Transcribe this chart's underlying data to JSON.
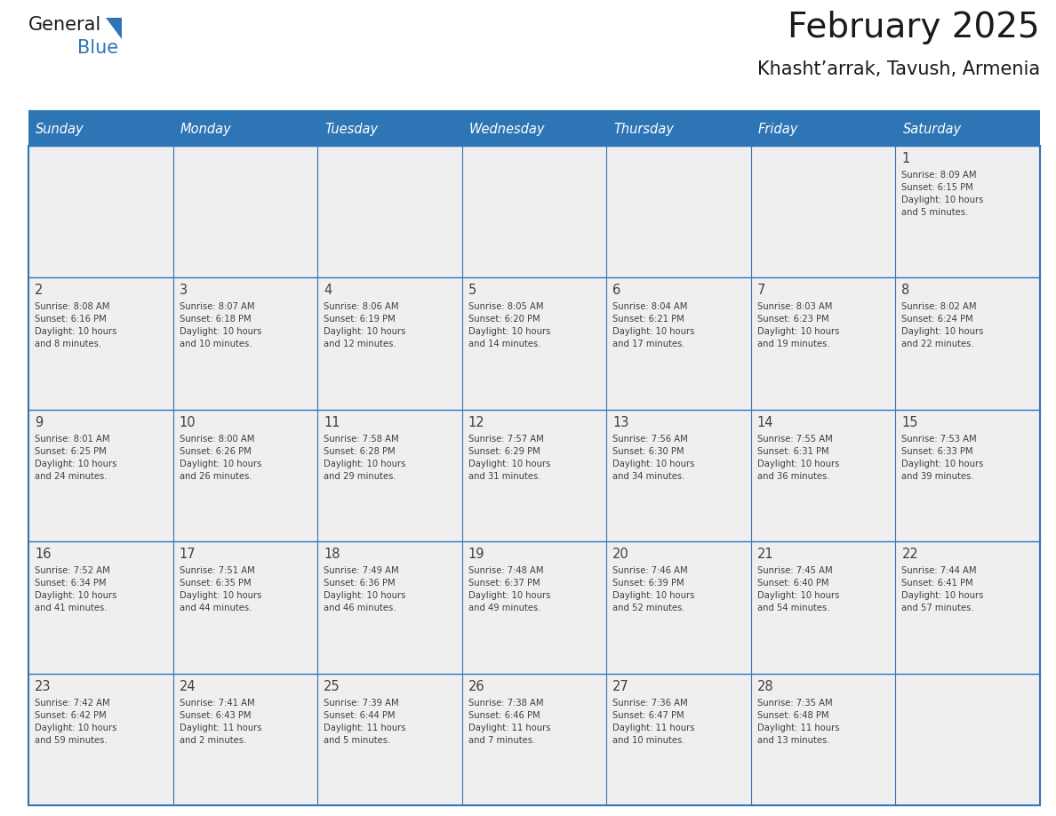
{
  "title": "February 2025",
  "subtitle": "Khasht’arrak, Tavush, Armenia",
  "header_bg": "#2E75B6",
  "header_text": "#FFFFFF",
  "cell_bg": "#EFEFEF",
  "border_color": "#2E75B6",
  "text_color": "#404040",
  "days_of_week": [
    "Sunday",
    "Monday",
    "Tuesday",
    "Wednesday",
    "Thursday",
    "Friday",
    "Saturday"
  ],
  "weeks": [
    [
      {
        "day": "",
        "info": ""
      },
      {
        "day": "",
        "info": ""
      },
      {
        "day": "",
        "info": ""
      },
      {
        "day": "",
        "info": ""
      },
      {
        "day": "",
        "info": ""
      },
      {
        "day": "",
        "info": ""
      },
      {
        "day": "1",
        "info": "Sunrise: 8:09 AM\nSunset: 6:15 PM\nDaylight: 10 hours\nand 5 minutes."
      }
    ],
    [
      {
        "day": "2",
        "info": "Sunrise: 8:08 AM\nSunset: 6:16 PM\nDaylight: 10 hours\nand 8 minutes."
      },
      {
        "day": "3",
        "info": "Sunrise: 8:07 AM\nSunset: 6:18 PM\nDaylight: 10 hours\nand 10 minutes."
      },
      {
        "day": "4",
        "info": "Sunrise: 8:06 AM\nSunset: 6:19 PM\nDaylight: 10 hours\nand 12 minutes."
      },
      {
        "day": "5",
        "info": "Sunrise: 8:05 AM\nSunset: 6:20 PM\nDaylight: 10 hours\nand 14 minutes."
      },
      {
        "day": "6",
        "info": "Sunrise: 8:04 AM\nSunset: 6:21 PM\nDaylight: 10 hours\nand 17 minutes."
      },
      {
        "day": "7",
        "info": "Sunrise: 8:03 AM\nSunset: 6:23 PM\nDaylight: 10 hours\nand 19 minutes."
      },
      {
        "day": "8",
        "info": "Sunrise: 8:02 AM\nSunset: 6:24 PM\nDaylight: 10 hours\nand 22 minutes."
      }
    ],
    [
      {
        "day": "9",
        "info": "Sunrise: 8:01 AM\nSunset: 6:25 PM\nDaylight: 10 hours\nand 24 minutes."
      },
      {
        "day": "10",
        "info": "Sunrise: 8:00 AM\nSunset: 6:26 PM\nDaylight: 10 hours\nand 26 minutes."
      },
      {
        "day": "11",
        "info": "Sunrise: 7:58 AM\nSunset: 6:28 PM\nDaylight: 10 hours\nand 29 minutes."
      },
      {
        "day": "12",
        "info": "Sunrise: 7:57 AM\nSunset: 6:29 PM\nDaylight: 10 hours\nand 31 minutes."
      },
      {
        "day": "13",
        "info": "Sunrise: 7:56 AM\nSunset: 6:30 PM\nDaylight: 10 hours\nand 34 minutes."
      },
      {
        "day": "14",
        "info": "Sunrise: 7:55 AM\nSunset: 6:31 PM\nDaylight: 10 hours\nand 36 minutes."
      },
      {
        "day": "15",
        "info": "Sunrise: 7:53 AM\nSunset: 6:33 PM\nDaylight: 10 hours\nand 39 minutes."
      }
    ],
    [
      {
        "day": "16",
        "info": "Sunrise: 7:52 AM\nSunset: 6:34 PM\nDaylight: 10 hours\nand 41 minutes."
      },
      {
        "day": "17",
        "info": "Sunrise: 7:51 AM\nSunset: 6:35 PM\nDaylight: 10 hours\nand 44 minutes."
      },
      {
        "day": "18",
        "info": "Sunrise: 7:49 AM\nSunset: 6:36 PM\nDaylight: 10 hours\nand 46 minutes."
      },
      {
        "day": "19",
        "info": "Sunrise: 7:48 AM\nSunset: 6:37 PM\nDaylight: 10 hours\nand 49 minutes."
      },
      {
        "day": "20",
        "info": "Sunrise: 7:46 AM\nSunset: 6:39 PM\nDaylight: 10 hours\nand 52 minutes."
      },
      {
        "day": "21",
        "info": "Sunrise: 7:45 AM\nSunset: 6:40 PM\nDaylight: 10 hours\nand 54 minutes."
      },
      {
        "day": "22",
        "info": "Sunrise: 7:44 AM\nSunset: 6:41 PM\nDaylight: 10 hours\nand 57 minutes."
      }
    ],
    [
      {
        "day": "23",
        "info": "Sunrise: 7:42 AM\nSunset: 6:42 PM\nDaylight: 10 hours\nand 59 minutes."
      },
      {
        "day": "24",
        "info": "Sunrise: 7:41 AM\nSunset: 6:43 PM\nDaylight: 11 hours\nand 2 minutes."
      },
      {
        "day": "25",
        "info": "Sunrise: 7:39 AM\nSunset: 6:44 PM\nDaylight: 11 hours\nand 5 minutes."
      },
      {
        "day": "26",
        "info": "Sunrise: 7:38 AM\nSunset: 6:46 PM\nDaylight: 11 hours\nand 7 minutes."
      },
      {
        "day": "27",
        "info": "Sunrise: 7:36 AM\nSunset: 6:47 PM\nDaylight: 11 hours\nand 10 minutes."
      },
      {
        "day": "28",
        "info": "Sunrise: 7:35 AM\nSunset: 6:48 PM\nDaylight: 11 hours\nand 13 minutes."
      },
      {
        "day": "",
        "info": ""
      }
    ]
  ],
  "logo_text1": "General",
  "logo_text2": "Blue",
  "logo_color1": "#1a1a1a",
  "logo_color2": "#2E75B6",
  "logo_triangle_color": "#2E75B6",
  "fig_w": 11.88,
  "fig_h": 9.18,
  "dpi": 100
}
